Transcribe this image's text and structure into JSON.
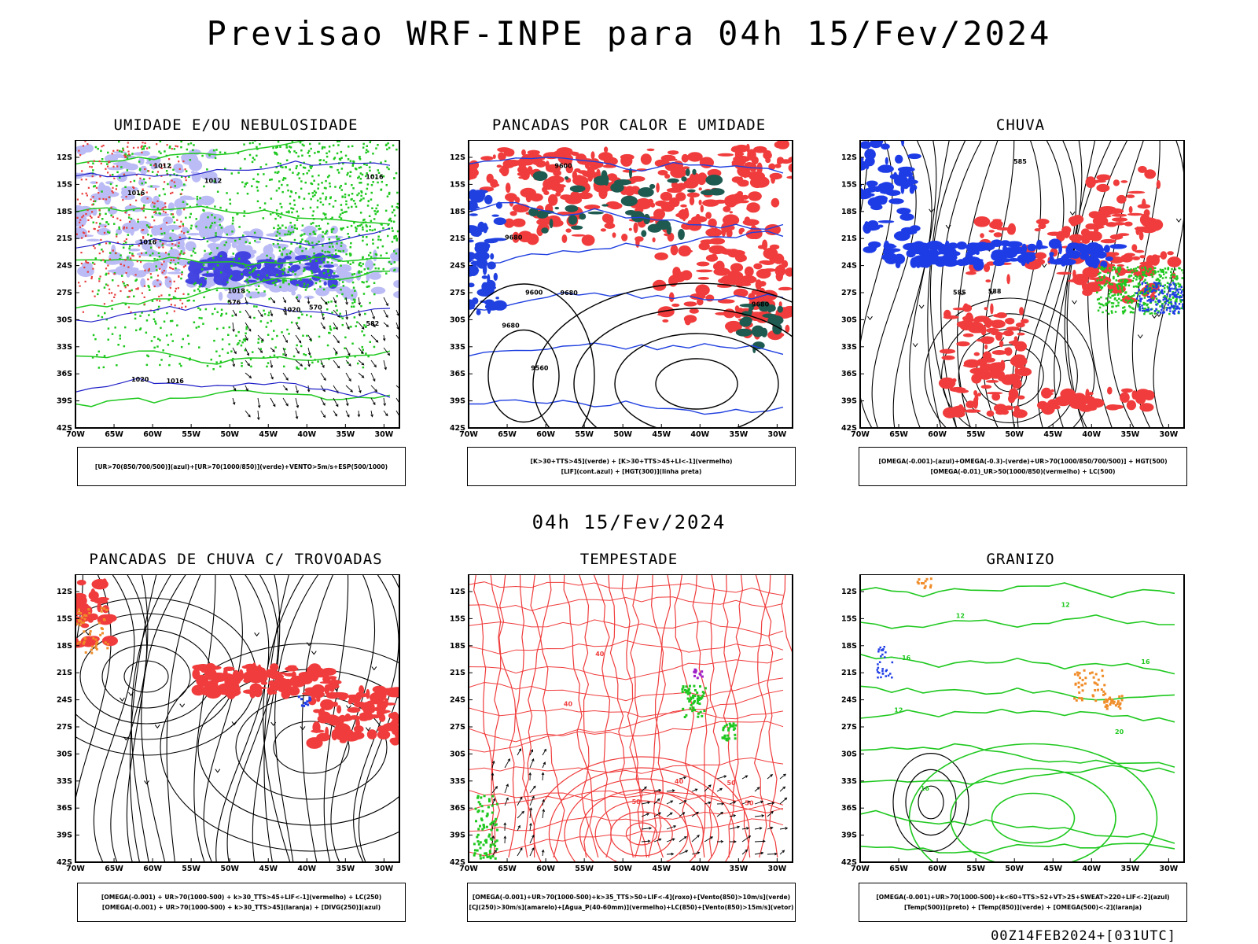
{
  "header": {
    "title": "Previsao WRF-INPE  para 04h 15/Fev/2024"
  },
  "middle_label": "04h 15/Fev/2024",
  "footer_stamp": "00Z14FEB2024+[031UTC]",
  "axes": {
    "lon_labels": [
      "70W",
      "65W",
      "60W",
      "55W",
      "50W",
      "45W",
      "40W",
      "35W",
      "30W"
    ],
    "lat_labels": [
      "12S",
      "15S",
      "18S",
      "21S",
      "24S",
      "27S",
      "30S",
      "33S",
      "36S",
      "39S",
      "42S"
    ]
  },
  "panels": [
    {
      "id": "umidade",
      "title": "UMIDADE E/OU NEBULOSIDADE",
      "legend": [
        "[UR>70(850/700/500)](azul)+[UR>70(1000/850)](verde)+VENTO>5m/s+ESP(500/1000)"
      ],
      "colors": {
        "primary": "#8c8cf0",
        "secondary": "#1fc81f",
        "accent": "#e83c3c",
        "dark": "#2020c8"
      },
      "contour_labels": [
        "1016",
        "1016",
        "1012",
        "1016",
        "1020",
        "1016",
        "1012",
        "1020",
        "576",
        "570",
        "582",
        "1018"
      ]
    },
    {
      "id": "pancadas-calor",
      "title": "PANCADAS POR CALOR E UMIDADE",
      "legend": [
        "[K>30+TTS>45](verde) + [K>30+TTS>45+LI<-1](vermelho)",
        "[LIF](cont.azul) + [HGT(300)](linha preta)"
      ],
      "colors": {
        "primary": "#f03c3c",
        "secondary": "#1e5a50",
        "accent": "#2040e0",
        "dark": "#000000"
      },
      "contour_labels": [
        "9680",
        "9680",
        "9680",
        "9600",
        "9600",
        "9560",
        "9680"
      ]
    },
    {
      "id": "chuva",
      "title": "CHUVA",
      "legend": [
        "[OMEGA(-0.001)-(azul)+OMEGA(-0.3)-(verde)+UR>70(1000/850/700/500)] + HGT(500)",
        "[OMEGA(-0.01)_UR>50(1000/850)(vermelho) + LC(500)"
      ],
      "colors": {
        "primary": "#f03c3c",
        "secondary": "#1fc81f",
        "accent": "#1e3ce6",
        "dark": "#000000"
      },
      "contour_labels": [
        "585",
        "585",
        "588"
      ]
    },
    {
      "id": "trovoadas",
      "title": "PANCADAS DE CHUVA C/ TROVOADAS",
      "legend": [
        "[OMEGA(-0.001) + UR>70(1000-500) + k>30_TTS>45+LIF<-1](vermelho) + LC(250)",
        "[OMEGA(-0.001) + UR>70(1000-500) + k>30_TTS>45](laranja) + [DIVG(250)](azul)"
      ],
      "colors": {
        "primary": "#f03c3c",
        "secondary": "#f08c28",
        "accent": "#1e3ce6",
        "dark": "#000000"
      },
      "contour_labels": []
    },
    {
      "id": "tempestade",
      "title": "TEMPESTADE",
      "legend": [
        "[OMEGA(-0.001)+UR>70(1000-500)+k>35_TTS>50+LIF<-4](roxo)+[Vento(850)>10m/s](verde)",
        "[CJ(250)>30m/s](amarelo)+[Agua_P(40-60mm)](vermelho)+LC(850)+[Vento(850)>15m/s](vetor)"
      ],
      "colors": {
        "primary": "#f03c3c",
        "secondary": "#1fc81f",
        "accent": "#a020c8",
        "dark": "#000000"
      },
      "contour_labels": [
        "40",
        "50",
        "40",
        "50",
        "50",
        "40"
      ]
    },
    {
      "id": "granizo",
      "title": "GRANIZO",
      "legend": [
        "[OMEGA(-0.001)+UR>70(1000-500)+k<60+TTS>52+VT>25+SWEAT>220+LIF<-2](azul)",
        "[Temp(500)](preto) + [Temp(850)](verde) + [OMEGA(500)<-2](laranja)"
      ],
      "colors": {
        "primary": "#1fc81f",
        "secondary": "#f08c28",
        "accent": "#1e3ce6",
        "dark": "#000000"
      },
      "contour_labels": [
        "12",
        "12",
        "12",
        "16",
        "16",
        "20",
        "16"
      ]
    }
  ]
}
